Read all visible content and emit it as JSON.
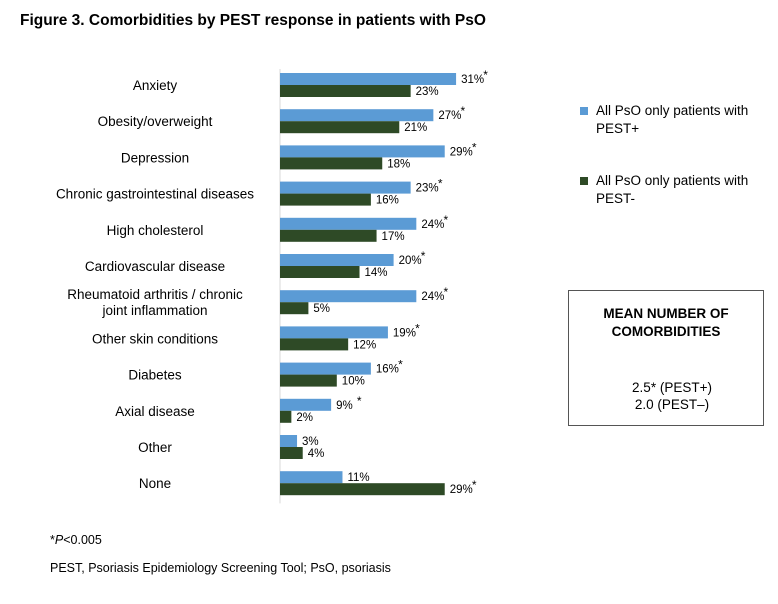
{
  "figure": {
    "title": "Figure 3. Comorbidities by PEST response in patients with PsO"
  },
  "chart_data": {
    "type": "bar",
    "orientation": "horizontal",
    "title": "Figure 3. Comorbidities by PEST response in patients with PsO",
    "xlabel": "",
    "ylabel": "",
    "value_unit": "%",
    "categories": [
      "Anxiety",
      "Obesity/overweight",
      "Depression",
      "Chronic gastrointestinal diseases",
      "High cholesterol",
      "Cardiovascular disease",
      "Rheumatoid arthritis / chronic joint inflammation",
      "Other skin conditions",
      "Diabetes",
      "Axial disease",
      "Other",
      "None"
    ],
    "series": [
      {
        "name": "All PsO only patients with PEST+",
        "color": "#5b9bd5",
        "values": [
          31,
          27,
          29,
          23,
          24,
          20,
          24,
          19,
          16,
          9,
          3,
          11
        ],
        "labels": [
          "31%",
          "27%",
          "29%",
          "23%",
          "24%",
          "20%",
          "24%",
          "19%",
          "16%",
          "9%",
          "3%",
          "11%"
        ]
      },
      {
        "name": "All PsO only patients with PEST-",
        "color": "#2e4a26",
        "values": [
          23,
          21,
          18,
          16,
          17,
          14,
          5,
          12,
          10,
          2,
          4,
          29
        ],
        "labels": [
          "23%",
          "21%",
          "18%",
          "16%",
          "17%",
          "14%",
          "5%",
          "12%",
          "10%",
          "2%",
          "4%",
          "29%"
        ]
      }
    ],
    "significance_marker": "*",
    "significant": [
      {
        "category_index": 0,
        "series_index": 0
      },
      {
        "category_index": 1,
        "series_index": 0
      },
      {
        "category_index": 2,
        "series_index": 0
      },
      {
        "category_index": 3,
        "series_index": 0
      },
      {
        "category_index": 4,
        "series_index": 0
      },
      {
        "category_index": 5,
        "series_index": 0
      },
      {
        "category_index": 6,
        "series_index": 0
      },
      {
        "category_index": 7,
        "series_index": 0
      },
      {
        "category_index": 8,
        "series_index": 0
      },
      {
        "category_index": 9,
        "series_index": 0
      },
      {
        "category_index": 11,
        "series_index": 1
      }
    ],
    "legend_position": "right",
    "grid": false,
    "xlim": [
      0,
      35
    ]
  },
  "legend": {
    "items": [
      {
        "label": "All PsO only patients with PEST+",
        "color": "#5b9bd5"
      },
      {
        "label": "All PsO only patients with PEST-",
        "color": "#2e4a26"
      }
    ]
  },
  "mean_box": {
    "title": "MEAN NUMBER OF COMORBIDITIES",
    "line1": "2.5* (PEST+)",
    "line2": "2.0 (PEST–)"
  },
  "footnotes": {
    "significance_italic": "P",
    "significance_text": "<0.005",
    "abbreviations": "PEST, Psoriasis Epidemiology Screening Tool; PsO, psoriasis"
  }
}
